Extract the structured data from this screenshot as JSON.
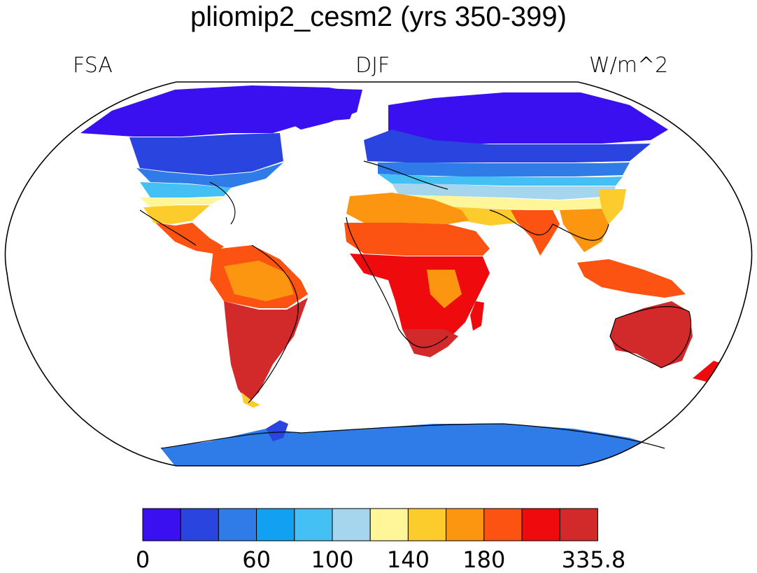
{
  "title": "pliomip2_cesm2 (yrs 350-399)",
  "left_label": "FSA",
  "center_label": "DJF",
  "right_label": "W/m^2",
  "colorbar": {
    "colors": [
      "#3a10f0",
      "#2a44e0",
      "#2f7be8",
      "#12a0f2",
      "#44c0f4",
      "#a6d6ee",
      "#fff69a",
      "#fccb2c",
      "#fc9510",
      "#fc5312",
      "#ef0b0d",
      "#d2292b"
    ],
    "tick_labels": [
      "0",
      "60",
      "100",
      "140",
      "180",
      "335.8"
    ]
  },
  "legend_colors": {
    "ocean": "#ffffff",
    "coastline": "#000000"
  }
}
